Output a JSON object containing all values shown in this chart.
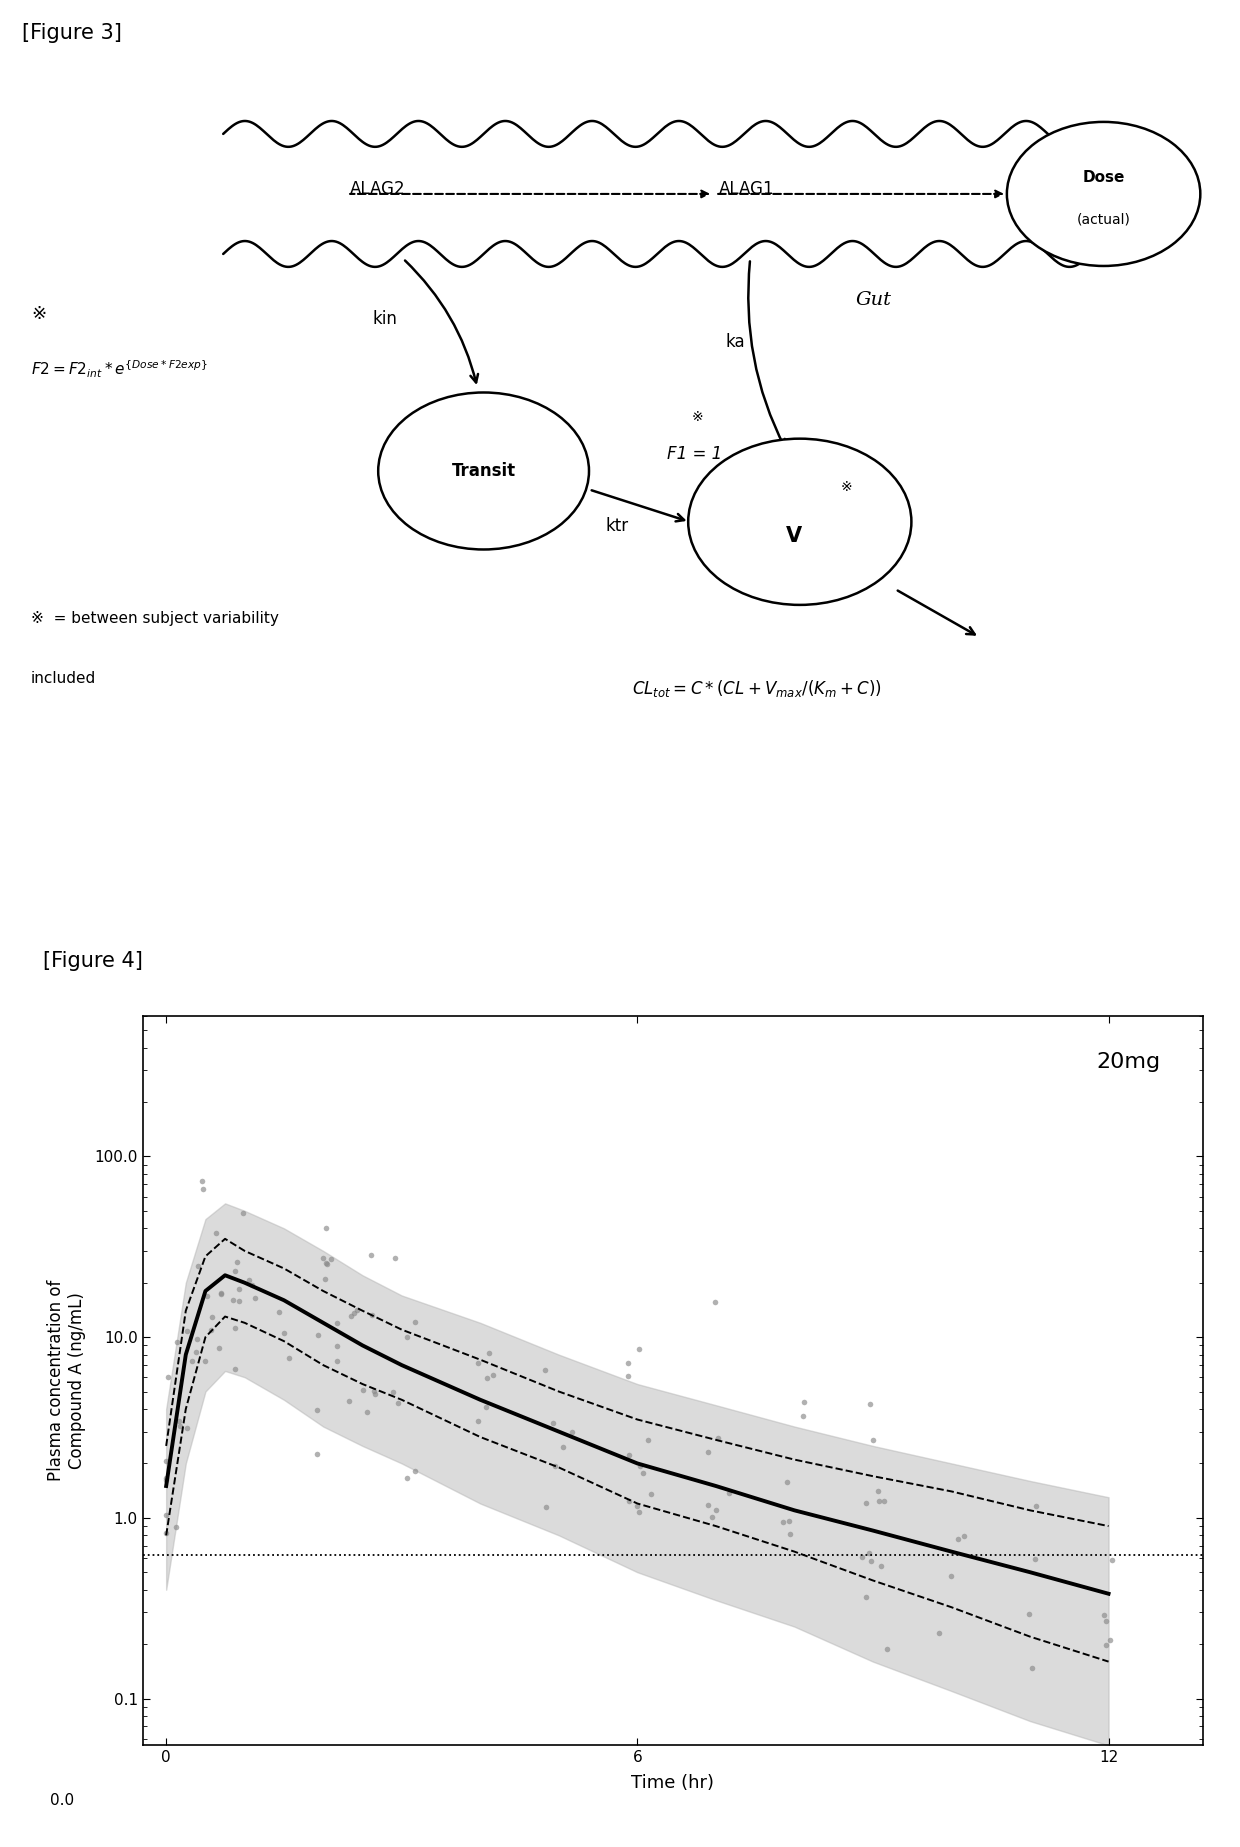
{
  "fig3_title": "[Figure 3]",
  "fig4_title": "[Figure 4]",
  "plot_title": "20mg",
  "xlabel": "Time (hr)",
  "ylabel": "Plasma concentration of\nCompound A (ng/mL)",
  "bg_color": "#ffffff",
  "line_color": "#000000",
  "dot_color": "#888888",
  "shade_color": "#b0b0b0",
  "hline_value": 0.62,
  "ytick_labels": [
    "0.1",
    "1.0",
    "10.0",
    "100.0"
  ],
  "xticks": [
    0,
    6,
    12
  ],
  "time_points": [
    0.0,
    0.25,
    0.5,
    0.75,
    1.0,
    1.5,
    2.0,
    2.5,
    3.0,
    4.0,
    5.0,
    6.0,
    7.0,
    8.0,
    9.0,
    10.0,
    11.0,
    12.0
  ],
  "median_line": [
    1.5,
    8.0,
    18.0,
    22.0,
    20.0,
    16.0,
    12.0,
    9.0,
    7.0,
    4.5,
    3.0,
    2.0,
    1.5,
    1.1,
    0.85,
    0.65,
    0.5,
    0.38
  ],
  "upper_dashed": [
    2.5,
    14.0,
    28.0,
    35.0,
    30.0,
    24.0,
    18.0,
    14.0,
    11.0,
    7.5,
    5.0,
    3.5,
    2.7,
    2.1,
    1.7,
    1.4,
    1.1,
    0.9
  ],
  "lower_dashed": [
    0.8,
    4.0,
    10.0,
    13.0,
    12.0,
    9.5,
    7.0,
    5.5,
    4.5,
    2.8,
    1.9,
    1.2,
    0.9,
    0.65,
    0.45,
    0.32,
    0.22,
    0.16
  ],
  "upper_shade": [
    4.0,
    20.0,
    45.0,
    55.0,
    50.0,
    40.0,
    30.0,
    22.0,
    17.0,
    12.0,
    8.0,
    5.5,
    4.2,
    3.2,
    2.5,
    2.0,
    1.6,
    1.3
  ],
  "lower_shade": [
    0.4,
    2.0,
    5.0,
    6.5,
    6.0,
    4.5,
    3.2,
    2.5,
    2.0,
    1.2,
    0.8,
    0.5,
    0.35,
    0.25,
    0.16,
    0.11,
    0.075,
    0.055
  ]
}
